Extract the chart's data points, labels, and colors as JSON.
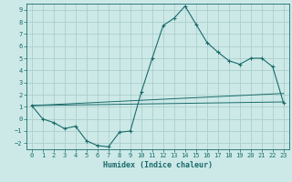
{
  "xlabel": "Humidex (Indice chaleur)",
  "xlim": [
    -0.5,
    23.5
  ],
  "ylim": [
    -2.5,
    9.5
  ],
  "xticks": [
    0,
    1,
    2,
    3,
    4,
    5,
    6,
    7,
    8,
    9,
    10,
    11,
    12,
    13,
    14,
    15,
    16,
    17,
    18,
    19,
    20,
    21,
    22,
    23
  ],
  "yticks": [
    -2,
    -1,
    0,
    1,
    2,
    3,
    4,
    5,
    6,
    7,
    8,
    9
  ],
  "bg_color": "#cce9e7",
  "grid_color": "#aacfcc",
  "line_color": "#1a6b6b",
  "main_x": [
    0,
    1,
    2,
    3,
    4,
    5,
    6,
    7,
    8,
    9,
    10,
    11,
    12,
    13,
    14,
    15,
    16,
    17,
    18,
    19,
    20,
    21,
    22,
    23
  ],
  "main_y": [
    1.1,
    0.0,
    -0.3,
    -0.8,
    -0.6,
    -1.8,
    -2.2,
    -2.3,
    -1.1,
    -1.0,
    2.2,
    5.0,
    7.7,
    8.3,
    9.3,
    7.8,
    6.3,
    5.5,
    4.8,
    4.5,
    5.0,
    5.0,
    4.3,
    1.3
  ],
  "trend1_x": [
    0,
    23
  ],
  "trend1_y": [
    1.1,
    1.4
  ],
  "trend2_x": [
    0,
    23
  ],
  "trend2_y": [
    1.1,
    2.1
  ]
}
